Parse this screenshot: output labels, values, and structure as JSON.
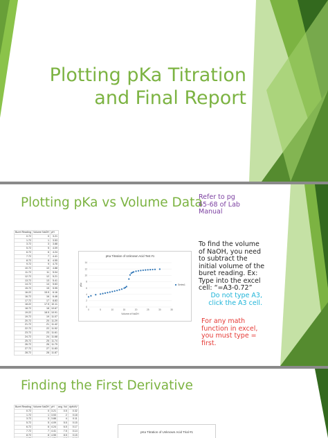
{
  "slide1": {
    "title_line1": "Plotting pKa Titration",
    "title_line2": "and Final Report"
  },
  "slide2": {
    "heading": "Plotting pKa vs Volume Data",
    "refer_text": "Refer to pg 65-68 of Lab Manual",
    "instructions": "To find the volume of NaOH, you need to subtract the initial volume of the buret reading.",
    "example_text": "Ex: Type into the excel cell: “=A3-0.72”",
    "note_cyan": "Do not type A3, click the A3 cell.",
    "note_red": "For any math function in excel, you must type = first.",
    "sheet_headers": [
      "Buret Reading",
      "Volume NaOH",
      "pH"
    ],
    "sheet_rows": [
      [
        "0.72",
        "0",
        "3.21"
      ],
      [
        "1.72",
        "1",
        "3.53"
      ],
      [
        "3.72",
        "3",
        "3.88"
      ],
      [
        "5.72",
        "5",
        "4.09"
      ],
      [
        "6.72",
        "6",
        "4.24"
      ],
      [
        "7.72",
        "7",
        "4.41"
      ],
      [
        "8.72",
        "8",
        "4.55"
      ],
      [
        "9.72",
        "9",
        "4.70"
      ],
      [
        "10.72",
        "10",
        "4.88"
      ],
      [
        "11.72",
        "11",
        "5.04"
      ],
      [
        "12.72",
        "12",
        "5.21"
      ],
      [
        "13.72",
        "13",
        "5.41"
      ],
      [
        "14.72",
        "14",
        "5.63"
      ],
      [
        "15.72",
        "15",
        "5.95"
      ],
      [
        "16.22",
        "15.5",
        "6.16"
      ],
      [
        "16.72",
        "16",
        "6.46"
      ],
      [
        "17.72",
        "17",
        "8.83"
      ],
      [
        "18.22",
        "17.5",
        "10.11"
      ],
      [
        "18.72",
        "18",
        "10.67"
      ],
      [
        "19.22",
        "18.5",
        "10.91"
      ],
      [
        "19.72",
        "19",
        "11.07"
      ],
      [
        "20.72",
        "20",
        "11.29"
      ],
      [
        "21.72",
        "21",
        "11.42"
      ],
      [
        "22.72",
        "22",
        "11.52"
      ],
      [
        "23.72",
        "23",
        "11.61"
      ],
      [
        "24.72",
        "24",
        "11.68"
      ],
      [
        "25.72",
        "25",
        "11.74"
      ],
      [
        "26.72",
        "26",
        "11.79"
      ],
      [
        "27.72",
        "27",
        "11.83"
      ],
      [
        "28.72",
        "28",
        "11.87"
      ]
    ],
    "chart_data": {
      "type": "scatter",
      "title": "pKa Titration of Unknown Acid Test #1",
      "xlabel": "Volume of NaOH",
      "ylabel": "pKa",
      "xlim": [
        0,
        35
      ],
      "ylim": [
        0,
        14
      ],
      "xticks": [
        0,
        5,
        10,
        15,
        20,
        25,
        30,
        35
      ],
      "yticks": [
        0,
        2,
        4,
        6,
        8,
        10,
        12,
        14
      ],
      "legend": "right",
      "series": [
        {
          "name": "Series1",
          "color": "#2e75b6",
          "x": [
            0,
            1,
            3,
            5,
            6,
            7,
            8,
            9,
            10,
            11,
            12,
            13,
            14,
            15,
            15.5,
            16,
            17,
            17.5,
            18,
            18.5,
            19,
            20,
            21,
            22,
            23,
            24,
            25,
            26,
            27,
            28,
            30
          ],
          "y": [
            3.21,
            3.53,
            3.88,
            4.09,
            4.24,
            4.41,
            4.55,
            4.7,
            4.88,
            5.04,
            5.21,
            5.41,
            5.63,
            5.95,
            6.16,
            6.46,
            8.83,
            10.11,
            10.67,
            10.91,
            11.07,
            11.29,
            11.42,
            11.52,
            11.61,
            11.68,
            11.74,
            11.79,
            11.83,
            11.87,
            11.95
          ]
        }
      ]
    }
  },
  "slide3": {
    "heading": "Finding the First Derivative",
    "sheet_headers": [
      "Buret Reading",
      "Volume NaOH",
      "pH",
      "avg. Vol",
      "dpH/dV"
    ],
    "sheet_rows": [
      [
        "0.72",
        "0",
        "3.21",
        "0.5",
        "0.32"
      ],
      [
        "1.72",
        "1",
        "3.53",
        "2",
        "0.18"
      ],
      [
        "3.72",
        "3",
        "3.88",
        "4",
        "0.11"
      ],
      [
        "5.72",
        "5",
        "4.09",
        "5.5",
        "0.15"
      ],
      [
        "6.72",
        "6",
        "4.24",
        "6.5",
        "0.17"
      ],
      [
        "7.72",
        "7",
        "4.41",
        "7.5",
        "0.14"
      ],
      [
        "8.72",
        "8",
        "4.55",
        "8.5",
        "0.15"
      ],
      [
        "9.72",
        "9",
        "4.70",
        "9.5",
        "0.18"
      ]
    ],
    "chart_title": "pKa Titration of Unknown Acid Trial #1"
  }
}
